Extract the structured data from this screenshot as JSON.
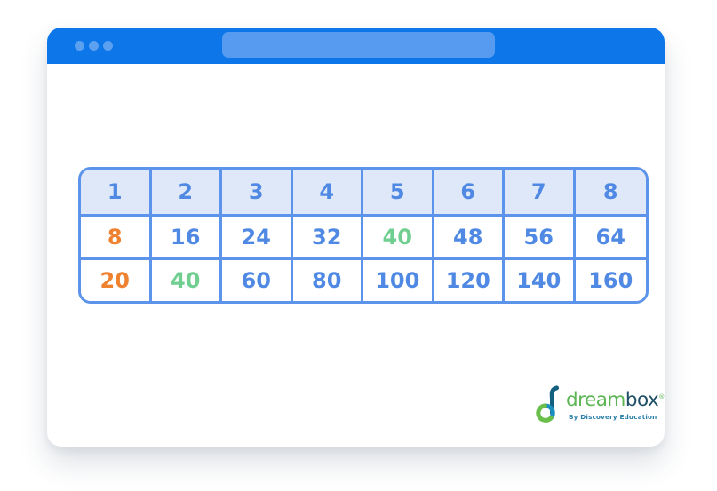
{
  "window": {
    "titlebar": {
      "dot_count": 3,
      "address_bar": {
        "value": "",
        "placeholder": ""
      }
    }
  },
  "table": {
    "header": [
      "1",
      "2",
      "3",
      "4",
      "5",
      "6",
      "7",
      "8"
    ],
    "rows": [
      {
        "cells": [
          {
            "value": "8",
            "color": "orange"
          },
          {
            "value": "16",
            "color": "blue"
          },
          {
            "value": "24",
            "color": "blue"
          },
          {
            "value": "32",
            "color": "blue"
          },
          {
            "value": "40",
            "color": "green"
          },
          {
            "value": "48",
            "color": "blue"
          },
          {
            "value": "56",
            "color": "blue"
          },
          {
            "value": "64",
            "color": "blue"
          }
        ]
      },
      {
        "cells": [
          {
            "value": "20",
            "color": "orange"
          },
          {
            "value": "40",
            "color": "green"
          },
          {
            "value": "60",
            "color": "blue"
          },
          {
            "value": "80",
            "color": "blue"
          },
          {
            "value": "100",
            "color": "blue"
          },
          {
            "value": "120",
            "color": "blue"
          },
          {
            "value": "140",
            "color": "blue"
          },
          {
            "value": "160",
            "color": "blue"
          }
        ]
      }
    ]
  },
  "logo": {
    "brand_part1": "dream",
    "brand_part2": "box",
    "registered_mark": "®",
    "tagline": "By Discovery Education"
  },
  "colors": {
    "titlebar": "#0d76e8",
    "titlebar_accent": "#5ca0f0",
    "table_border": "#5b94ea",
    "header_bg": "#dfe8f8",
    "blue": "#4f89e3",
    "orange": "#ee8230",
    "green": "#6fce90",
    "logo_green": "#5cb553",
    "logo_teal": "#1b8fbe",
    "logo_navy": "#1e4f66",
    "tagline_teal": "#2a7fa8"
  }
}
